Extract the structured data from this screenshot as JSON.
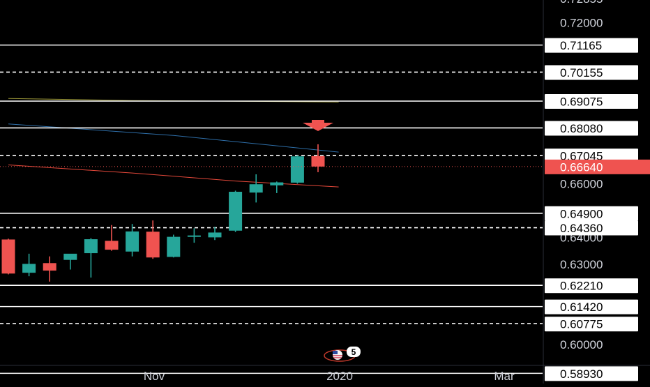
{
  "colors": {
    "background": "#000000",
    "up": "#26a69a",
    "down": "#ef5350",
    "level_line": "#ffffff",
    "axis_text": "#d1d4dc",
    "label_bg": "#ffffff",
    "label_text": "#000000",
    "ma_short": "#e5483a",
    "ma_mid": "#2e6ea8",
    "ma_long": "#9e9a39",
    "arrow": "#ef5350",
    "current_price_bg": "#ef5350"
  },
  "chart_data": {
    "type": "candlestick",
    "x_axis": {
      "tick_labels": [
        "Nov",
        "2020",
        "Mar"
      ]
    },
    "y_axis": {
      "ylim": [
        0.5855,
        0.7285
      ],
      "tick_labels": [
        "0.72000",
        "0.66000",
        "0.64000",
        "0.63000",
        "0.60000"
      ],
      "tick_values": [
        0.72,
        0.66,
        0.64,
        0.63,
        0.6
      ]
    },
    "candles": [
      {
        "o": 0.6392,
        "h": 0.6395,
        "l": 0.6262,
        "c": 0.6265
      },
      {
        "o": 0.6268,
        "h": 0.6339,
        "l": 0.6255,
        "c": 0.6301
      },
      {
        "o": 0.6304,
        "h": 0.6329,
        "l": 0.6235,
        "c": 0.6276
      },
      {
        "o": 0.6316,
        "h": 0.6336,
        "l": 0.628,
        "c": 0.6339
      },
      {
        "o": 0.6341,
        "h": 0.6397,
        "l": 0.625,
        "c": 0.6393
      },
      {
        "o": 0.6387,
        "h": 0.6446,
        "l": 0.635,
        "c": 0.6354
      },
      {
        "o": 0.6347,
        "h": 0.645,
        "l": 0.6329,
        "c": 0.6422
      },
      {
        "o": 0.6421,
        "h": 0.6463,
        "l": 0.632,
        "c": 0.6325
      },
      {
        "o": 0.6327,
        "h": 0.641,
        "l": 0.6325,
        "c": 0.6402
      },
      {
        "o": 0.6406,
        "h": 0.6434,
        "l": 0.638,
        "c": 0.6407
      },
      {
        "o": 0.64,
        "h": 0.6439,
        "l": 0.639,
        "c": 0.6418
      },
      {
        "o": 0.6425,
        "h": 0.6574,
        "l": 0.642,
        "c": 0.657
      },
      {
        "o": 0.6567,
        "h": 0.6635,
        "l": 0.653,
        "c": 0.6598
      },
      {
        "o": 0.6594,
        "h": 0.6608,
        "l": 0.6565,
        "c": 0.6605
      },
      {
        "o": 0.6604,
        "h": 0.6705,
        "l": 0.66,
        "c": 0.6702
      },
      {
        "o": 0.6703,
        "h": 0.6747,
        "l": 0.6643,
        "c": 0.6664
      }
    ],
    "horizontal_levels": [
      {
        "label": "0.71165",
        "value": 0.7117,
        "style": "solid"
      },
      {
        "label": "0.70155",
        "value": 0.7016,
        "style": "dashed"
      },
      {
        "label": "0.69075",
        "value": 0.6908,
        "style": "solid"
      },
      {
        "label": "0.68080",
        "value": 0.6808,
        "style": "solid"
      },
      {
        "label": "0.67045",
        "value": 0.6705,
        "style": "dashed"
      },
      {
        "label": "0.64900",
        "value": 0.649,
        "style": "solid"
      },
      {
        "label": "0.64360",
        "value": 0.6436,
        "style": "dashed"
      },
      {
        "label": "0.62210",
        "value": 0.6221,
        "style": "solid"
      },
      {
        "label": "0.61420",
        "value": 0.6142,
        "style": "solid"
      },
      {
        "label": "0.60775",
        "value": 0.6078,
        "style": "dashed"
      },
      {
        "label": "0.58930",
        "value": 0.5893,
        "style": "solid"
      }
    ],
    "current_price": {
      "label": "0.66640",
      "value": 0.6664
    },
    "moving_averages": [
      {
        "color_key": "ma_long",
        "points": [
          [
            0,
            0.6918
          ],
          [
            6,
            0.691
          ],
          [
            16,
            0.6905
          ]
        ]
      },
      {
        "color_key": "ma_mid",
        "points": [
          [
            0,
            0.6823
          ],
          [
            8,
            0.678
          ],
          [
            16,
            0.6718
          ]
        ]
      },
      {
        "color_key": "ma_short",
        "points": [
          [
            0,
            0.667
          ],
          [
            6,
            0.664
          ],
          [
            11,
            0.661
          ],
          [
            16,
            0.6588
          ]
        ]
      }
    ],
    "event_badge": {
      "count": "5"
    }
  }
}
